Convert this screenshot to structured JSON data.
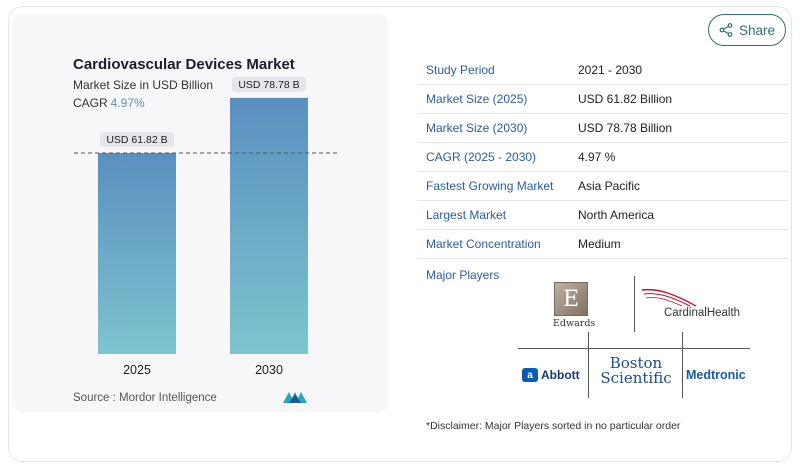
{
  "header": {
    "title": "Cardiovascular Devices Market",
    "subtitle": "Market Size in USD Billion",
    "cagr_label": "CAGR",
    "cagr_value": "4.97%",
    "share_label": "Share"
  },
  "chart_data": {
    "type": "bar",
    "categories": [
      "2025",
      "2030"
    ],
    "values": [
      61.82,
      78.78
    ],
    "data_labels": [
      "USD 61.82 B",
      "USD 78.78 B"
    ],
    "title": "Cardiovascular Devices Market",
    "subtitle": "Market Size in USD Billion",
    "xlabel": "",
    "ylabel": "",
    "ylim": [
      0,
      100
    ],
    "grid": false,
    "reference_line": "dashed at first bar value",
    "colors": [
      "#7ec4cf",
      "#5a8fbf"
    ]
  },
  "source": "Source :  Mordor Intelligence",
  "info_table": [
    {
      "key": "Study Period",
      "value": "2021 - 2030"
    },
    {
      "key": "Market Size (2025)",
      "value": "USD 61.82 Billion"
    },
    {
      "key": "Market Size (2030)",
      "value": "USD 78.78 Billion"
    },
    {
      "key": "CAGR (2025 - 2030)",
      "value": "4.97 %"
    },
    {
      "key": "Fastest Growing Market",
      "value": "Asia Pacific"
    },
    {
      "key": "Largest Market",
      "value": "North America"
    },
    {
      "key": "Market Concentration",
      "value": "Medium"
    }
  ],
  "major_players": {
    "label": "Major Players",
    "logos": [
      "Edwards",
      "CardinalHealth",
      "Abbott",
      "Boston Scientific",
      "Medtronic"
    ]
  },
  "disclaimer": "*Disclaimer: Major Players sorted in no particular order"
}
